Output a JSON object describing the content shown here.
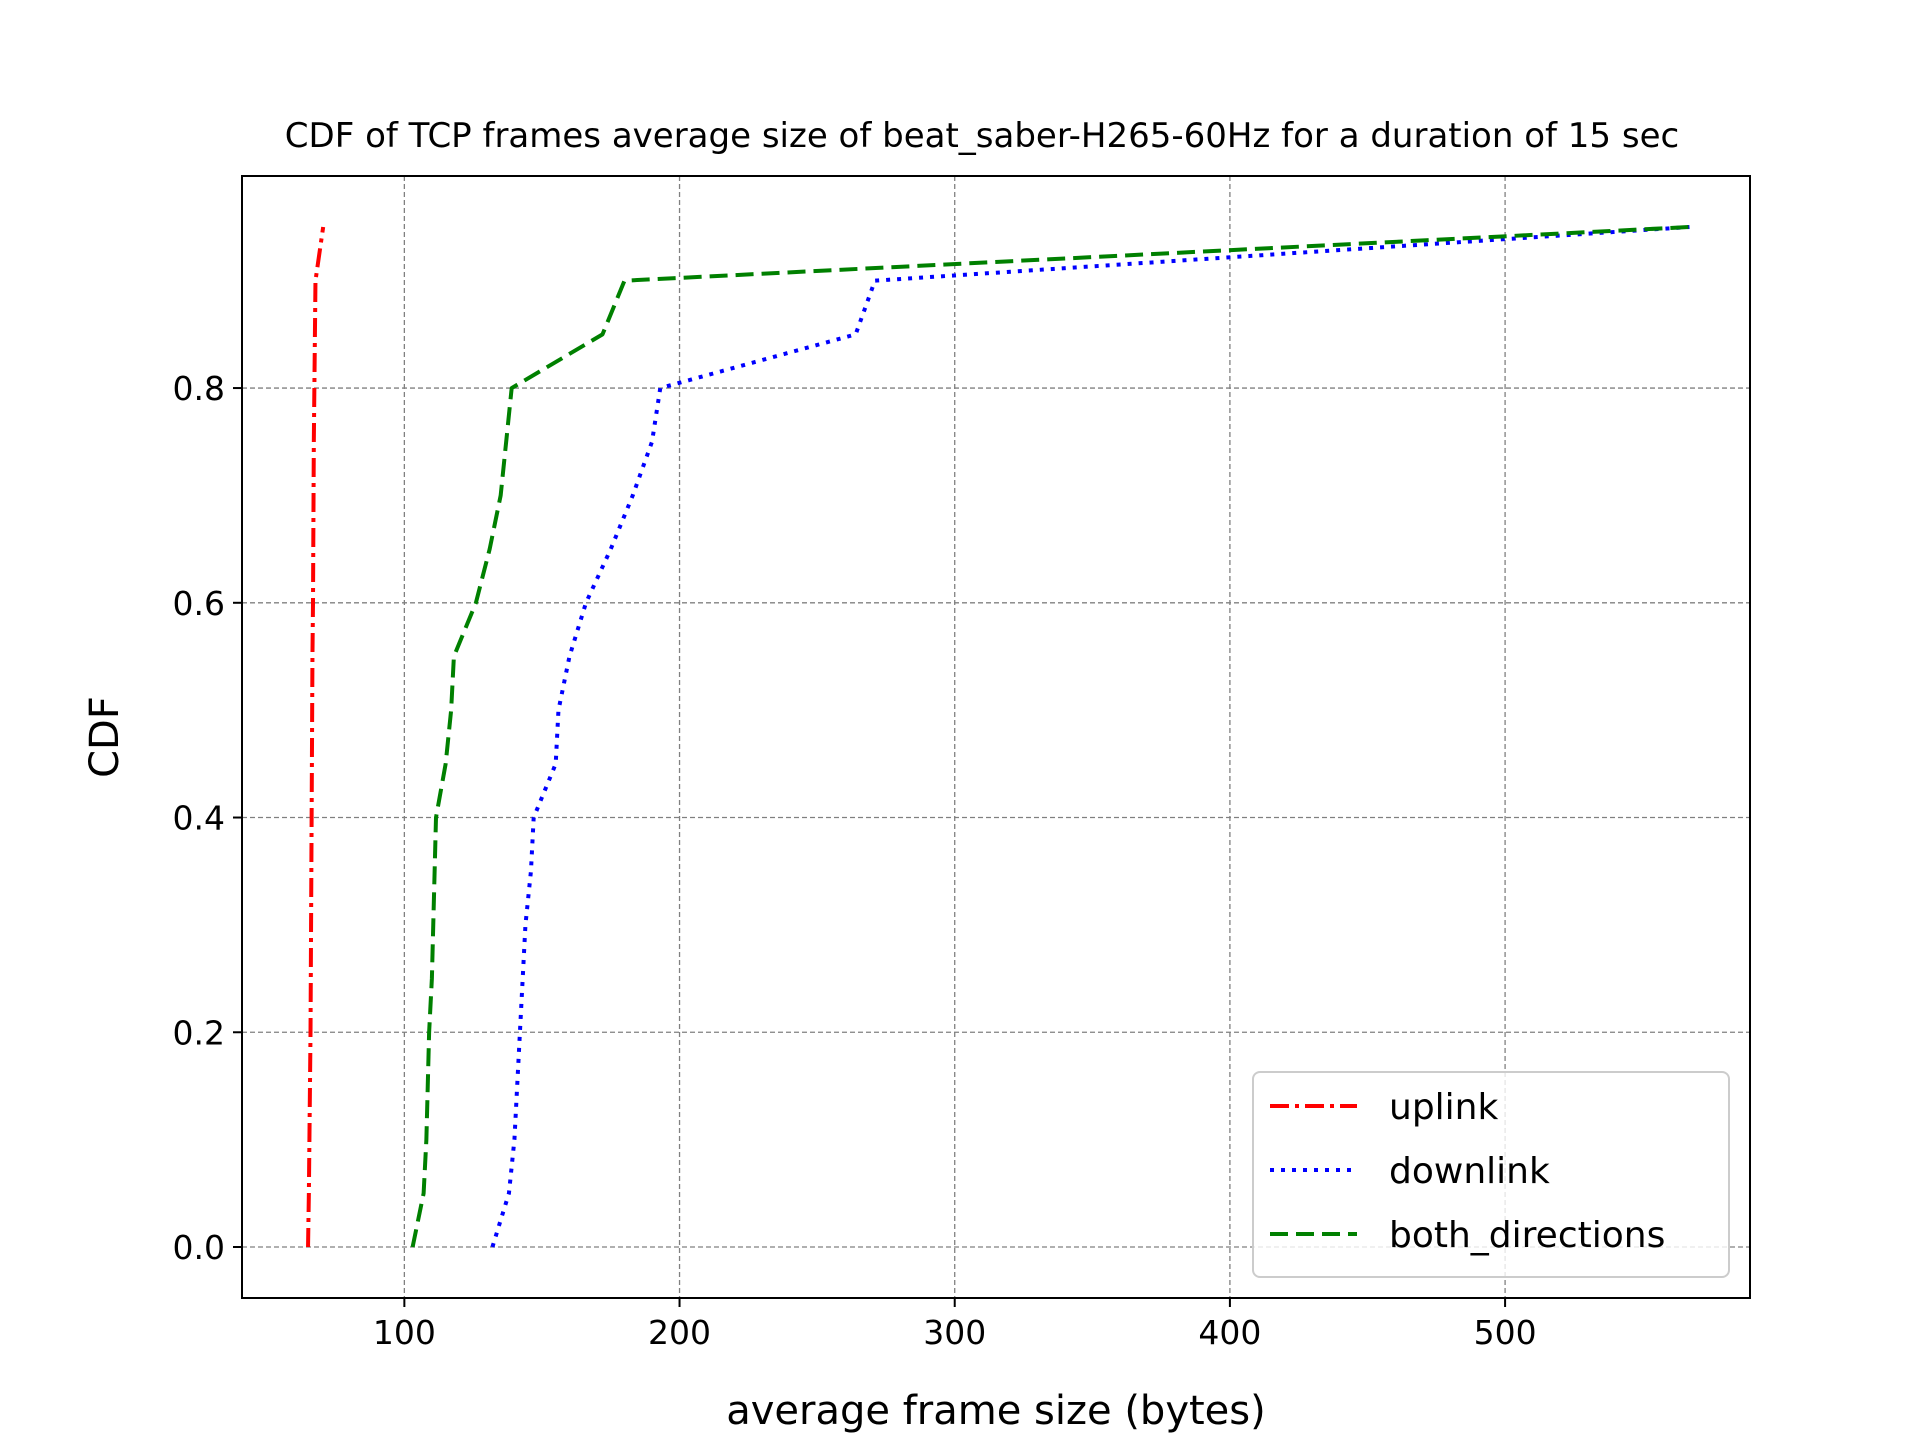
{
  "chart_data": {
    "type": "line",
    "title": "CDF of TCP frames average size of beat_saber-H265-60Hz for a duration of 15 sec",
    "xlabel": "average frame size (bytes)",
    "ylabel": "CDF",
    "xlim": [
      41,
      589
    ],
    "ylim": [
      -0.0475,
      0.9975
    ],
    "xticks": [
      100,
      200,
      300,
      400,
      500
    ],
    "xtick_labels": [
      "100",
      "200",
      "300",
      "400",
      "500"
    ],
    "yticks": [
      0.0,
      0.2,
      0.4,
      0.6,
      0.8
    ],
    "ytick_labels": [
      "0.0",
      "0.2",
      "0.4",
      "0.6",
      "0.8"
    ],
    "grid": true,
    "legend_position": "lower-right",
    "series": [
      {
        "name": "uplink",
        "color": "#ff0000",
        "style": "dashdot",
        "x": [
          65,
          65.3,
          65.5,
          65.7,
          65.9,
          66,
          66.1,
          66.2,
          66.3,
          66.4,
          66.5,
          66.6,
          66.8,
          66.9,
          67.0,
          67.1,
          67.3,
          67.5,
          67.7,
          70.5
        ],
        "y": [
          0.0,
          0.05,
          0.1,
          0.15,
          0.2,
          0.25,
          0.3,
          0.35,
          0.4,
          0.45,
          0.5,
          0.55,
          0.6,
          0.65,
          0.7,
          0.75,
          0.8,
          0.85,
          0.9,
          0.95
        ]
      },
      {
        "name": "downlink",
        "color": "#0000ff",
        "style": "dotted",
        "x": [
          132,
          138,
          140,
          141,
          142,
          143,
          144,
          146,
          147,
          155,
          156,
          160,
          166,
          175,
          183,
          190,
          193,
          264,
          271,
          567
        ],
        "y": [
          0.0,
          0.05,
          0.1,
          0.15,
          0.2,
          0.25,
          0.3,
          0.35,
          0.4,
          0.45,
          0.5,
          0.55,
          0.6,
          0.65,
          0.7,
          0.75,
          0.8,
          0.85,
          0.9,
          0.95
        ]
      },
      {
        "name": "both_directions",
        "color": "#008000",
        "style": "dashed",
        "x": [
          103,
          107,
          108,
          108.5,
          109,
          110,
          110.5,
          111,
          111.5,
          115,
          117,
          118,
          126,
          131,
          135,
          137,
          139,
          172,
          180,
          567
        ],
        "y": [
          0.0,
          0.05,
          0.1,
          0.15,
          0.2,
          0.25,
          0.3,
          0.35,
          0.4,
          0.45,
          0.5,
          0.55,
          0.6,
          0.65,
          0.7,
          0.75,
          0.8,
          0.85,
          0.9,
          0.95
        ]
      }
    ]
  }
}
